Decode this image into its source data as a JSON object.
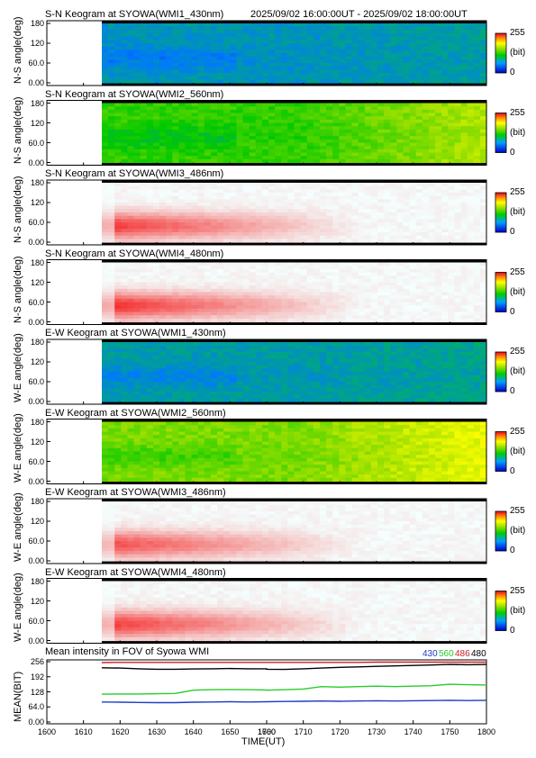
{
  "header": {
    "time_range": "2025/09/02 16:00:00UT - 2025/09/02 18:00:00UT"
  },
  "colors": {
    "cb_top": "#e8002a",
    "cb_mid": "#ffff00",
    "cb_green": "#00cc00",
    "cb_bottom": "#0000cc",
    "line_430": "#1e3cc8",
    "line_560": "#28cc28",
    "line_486": "#cc2020",
    "line_480": "#000000"
  },
  "colorbar": {
    "max_label": "255",
    "unit_label": "(bit)",
    "min_label": "0"
  },
  "chart_data": [
    {
      "type": "heatmap",
      "title": "S-N Keogram at SYOWA(WMI1_430nm)",
      "ylabel": "N-S angle(deg)",
      "yticks": [
        "180",
        "120",
        "60.0",
        "0.00"
      ],
      "ylim": [
        0,
        180
      ],
      "xlim": [
        1600,
        1800
      ],
      "data_start": "1615",
      "palette": "rainbow",
      "level": 0.28
    },
    {
      "type": "heatmap",
      "title": "S-N Keogram at SYOWA(WMI2_560nm)",
      "ylabel": "N-S angle(deg)",
      "yticks": [
        "180",
        "120",
        "60.0",
        "0.00"
      ],
      "ylim": [
        0,
        180
      ],
      "xlim": [
        1600,
        1800
      ],
      "data_start": "1615",
      "palette": "rainbow",
      "level": 0.5
    },
    {
      "type": "heatmap",
      "title": "S-N Keogram at SYOWA(WMI3_486nm)",
      "ylabel": "N-S angle(deg)",
      "yticks": [
        "180",
        "120",
        "60.0",
        "0.00"
      ],
      "ylim": [
        0,
        180
      ],
      "xlim": [
        1600,
        1800
      ],
      "data_start": "1615",
      "palette": "saturated",
      "level": 0.9
    },
    {
      "type": "heatmap",
      "title": "S-N Keogram at SYOWA(WMI4_480nm)",
      "ylabel": "N-S angle(deg)",
      "yticks": [
        "180",
        "120",
        "60.0",
        "0.00"
      ],
      "ylim": [
        0,
        180
      ],
      "xlim": [
        1600,
        1800
      ],
      "data_start": "1615",
      "palette": "saturated",
      "level": 0.95
    },
    {
      "type": "heatmap",
      "title": "E-W Keogram at SYOWA(WMI1_430nm)",
      "ylabel": "W-E angle(deg)",
      "yticks": [
        "180",
        "120",
        "60.0",
        "0.00"
      ],
      "ylim": [
        0,
        180
      ],
      "xlim": [
        1600,
        1800
      ],
      "data_start": "1615",
      "palette": "rainbow",
      "level": 0.3
    },
    {
      "type": "heatmap",
      "title": "E-W Keogram at SYOWA(WMI2_560nm)",
      "ylabel": "W-E angle(deg)",
      "yticks": [
        "180",
        "120",
        "60.0",
        "0.00"
      ],
      "ylim": [
        0,
        180
      ],
      "xlim": [
        1600,
        1800
      ],
      "data_start": "1615",
      "palette": "rainbow",
      "level": 0.58
    },
    {
      "type": "heatmap",
      "title": "E-W Keogram at SYOWA(WMI3_486nm)",
      "ylabel": "W-E angle(deg)",
      "yticks": [
        "180",
        "120",
        "60.0",
        "0.00"
      ],
      "ylim": [
        0,
        180
      ],
      "xlim": [
        1600,
        1800
      ],
      "data_start": "1615",
      "palette": "saturated",
      "level": 0.8
    },
    {
      "type": "heatmap",
      "title": "E-W Keogram at SYOWA(WMI4_480nm)",
      "ylabel": "W-E angle(deg)",
      "yticks": [
        "180",
        "120",
        "60.0",
        "0.00"
      ],
      "ylim": [
        0,
        180
      ],
      "xlim": [
        1600,
        1800
      ],
      "data_start": "1615",
      "palette": "saturated",
      "level": 0.88
    },
    {
      "type": "line",
      "title": "Mean intensity in FOV of Syowa WMI",
      "ylabel": "MEAN(BIT)",
      "xlabel": "TIME(UT)",
      "yticks": [
        "256",
        "192",
        "128",
        "64.0",
        "0.00"
      ],
      "ylim": [
        0,
        256
      ],
      "xticks": [
        "1600",
        "1610",
        "1620",
        "1630",
        "1640",
        "1650",
        "1660",
        "1700",
        "1710",
        "1720",
        "1730",
        "1740",
        "1750",
        "1800"
      ],
      "xlim": [
        1600,
        1800
      ],
      "x": [
        1615,
        1620,
        1625,
        1630,
        1635,
        1640,
        1645,
        1650,
        1655,
        1660,
        1700,
        1705,
        1710,
        1715,
        1720,
        1725,
        1730,
        1735,
        1740,
        1745,
        1750,
        1755,
        1800
      ],
      "series": [
        {
          "name": "430",
          "values": [
            85,
            84,
            83,
            82,
            82,
            84,
            85,
            86,
            85,
            86,
            86,
            87,
            88,
            89,
            88,
            89,
            90,
            89,
            90,
            91,
            92,
            91,
            92
          ]
        },
        {
          "name": "560",
          "values": [
            118,
            119,
            119,
            120,
            121,
            135,
            137,
            138,
            137,
            136,
            135,
            137,
            140,
            150,
            148,
            150,
            152,
            150,
            152,
            154,
            160,
            158,
            157
          ]
        },
        {
          "name": "486",
          "values": [
            252,
            253,
            253,
            253,
            253,
            253,
            253,
            253,
            253,
            253,
            253,
            253,
            253,
            253,
            253,
            253,
            254,
            254,
            254,
            254,
            254,
            254,
            254
          ]
        },
        {
          "name": "480",
          "values": [
            230,
            229,
            226,
            224,
            224,
            225,
            226,
            227,
            226,
            226,
            224,
            223,
            226,
            229,
            232,
            234,
            236,
            238,
            240,
            242,
            244,
            243,
            244
          ]
        }
      ]
    }
  ]
}
